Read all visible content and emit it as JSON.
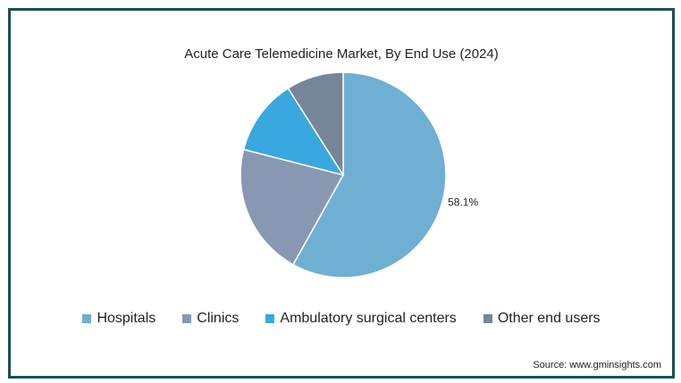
{
  "chart_data": {
    "type": "pie",
    "title": "Acute Care Telemedicine Market, By End Use (2024)",
    "categories": [
      "Hospitals",
      "Clinics",
      "Ambulatory surgical centers",
      "Other end users"
    ],
    "values": [
      58.1,
      20.9,
      12.0,
      9.0
    ],
    "colors": [
      "#6fafd3",
      "#8898b2",
      "#3aa8e0",
      "#768698"
    ],
    "data_labels": [
      "58.1%",
      "",
      "",
      ""
    ],
    "legend_position": "bottom",
    "source": "Source: www.gminsights.com"
  }
}
